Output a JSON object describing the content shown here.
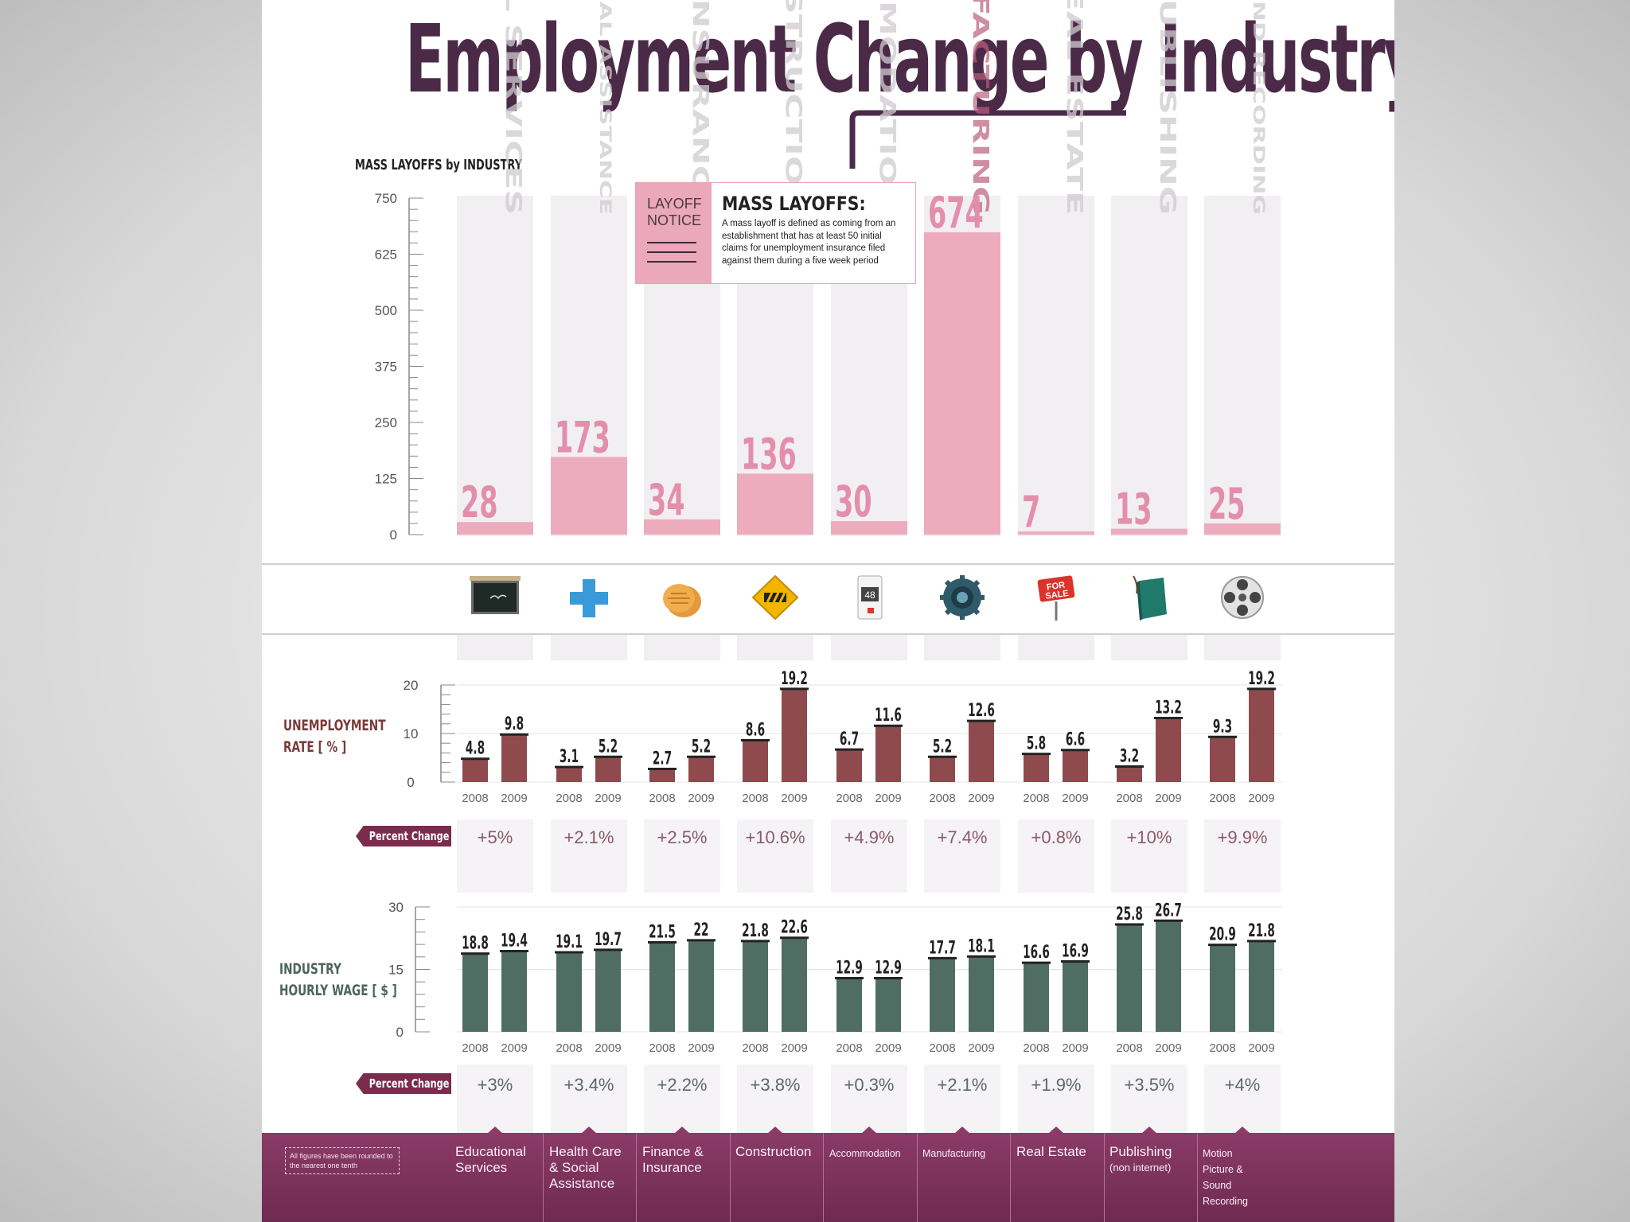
{
  "title": "Employment Change by Industry",
  "colors": {
    "brand": "#4b2a48",
    "layoff_bar": "#eba8bb",
    "column_bg": "#f1eff1",
    "unemployment_bar": "#8f4a4d",
    "wage_bar": "#4f6d63",
    "footer": "#7b2c58",
    "tag": "#7b2c4c"
  },
  "notice": {
    "tag": "LAYOFF NOTICE",
    "title": "MASS LAYOFFS:",
    "text": "A mass layoff is defined as coming from an establishment that has at least 50 initial claims for unemployment insurance filed against them during a five week period"
  },
  "labels": {
    "layoffs_section": "MASS LAYOFFS by INDUSTRY",
    "unemployment_line1": "UNEMPLOYMENT",
    "unemployment_line2": "RATE [ % ]",
    "wage_line1": "INDUSTRY",
    "wage_line2": "HOURLY WAGE [ $ ]",
    "percent_change": "Percent Change",
    "footnote": "All figures have been rounded to the nearest one tenth"
  },
  "industries": [
    {
      "name": "Educational Services",
      "sub": "",
      "icon": "chalkboard-icon"
    },
    {
      "name": "Health Care & Social Assistance",
      "sub": "",
      "icon": "medical-cross-icon"
    },
    {
      "name": "Finance & Insurance",
      "sub": "",
      "icon": "coins-icon"
    },
    {
      "name": "Construction",
      "sub": "",
      "icon": "construction-sign-icon"
    },
    {
      "name": "Accommodation",
      "sub": "",
      "icon": "door-tag-icon"
    },
    {
      "name": "Manufacturing",
      "sub": "",
      "icon": "gear-icon"
    },
    {
      "name": "Real Estate",
      "sub": "",
      "icon": "for-sale-sign-icon"
    },
    {
      "name": "Publishing",
      "sub": "(non internet)",
      "icon": "book-icon"
    },
    {
      "name": "Motion Picture & Sound Recording",
      "sub": "",
      "icon": "film-reel-icon"
    }
  ],
  "chart_data": [
    {
      "type": "bar",
      "title": "MASS LAYOFFS by INDUSTRY",
      "categories": [
        "EDUCATIONAL SERVICES",
        "HEALTH CARE & SOCIAL ASSISTANCE",
        "FINANCE & INSURANCE",
        "CONSTRUCTION",
        "ACCOMMODATION",
        "MANUFACTURING",
        "REAL ESTATE",
        "PUBLISHING",
        "MOTION PICTURE & SOUND RECORDING"
      ],
      "values": [
        28,
        173,
        34,
        136,
        30,
        674,
        7,
        13,
        25
      ],
      "ylim": [
        0,
        750
      ],
      "yticks": [
        0,
        125,
        250,
        375,
        500,
        625,
        750
      ]
    },
    {
      "type": "bar",
      "title": "UNEMPLOYMENT RATE [ % ]",
      "categories": [
        "Educational Services",
        "Health Care & Social Assistance",
        "Finance & Insurance",
        "Construction",
        "Accommodation",
        "Manufacturing",
        "Real Estate",
        "Publishing",
        "Motion Picture & Sound Recording"
      ],
      "series": [
        {
          "name": "2008",
          "values": [
            4.8,
            3.1,
            2.7,
            8.6,
            6.7,
            5.2,
            5.8,
            3.2,
            9.3
          ]
        },
        {
          "name": "2009",
          "values": [
            9.8,
            5.2,
            5.2,
            19.2,
            11.6,
            12.6,
            6.6,
            13.2,
            19.2
          ]
        }
      ],
      "percent_change": [
        "+5%",
        "+2.1%",
        "+2.5%",
        "+10.6%",
        "+4.9%",
        "+7.4%",
        "+0.8%",
        "+10%",
        "+9.9%"
      ],
      "ylim": [
        0,
        20
      ],
      "yticks": [
        0,
        10,
        20
      ]
    },
    {
      "type": "bar",
      "title": "INDUSTRY HOURLY WAGE [ $ ]",
      "categories": [
        "Educational Services",
        "Health Care & Social Assistance",
        "Finance & Insurance",
        "Construction",
        "Accommodation",
        "Manufacturing",
        "Real Estate",
        "Publishing",
        "Motion Picture & Sound Recording"
      ],
      "series": [
        {
          "name": "2008",
          "values": [
            18.8,
            19.1,
            21.5,
            21.8,
            12.9,
            17.7,
            16.6,
            25.8,
            20.9
          ]
        },
        {
          "name": "2009",
          "values": [
            19.4,
            19.7,
            22,
            22.6,
            12.9,
            18.1,
            16.9,
            26.7,
            21.8
          ]
        }
      ],
      "percent_change": [
        "+3%",
        "+3.4%",
        "+2.2%",
        "+3.8%",
        "+0.3%",
        "+2.1%",
        "+1.9%",
        "+3.5%",
        "+4%"
      ],
      "ylim": [
        0,
        30
      ],
      "yticks": [
        0,
        15,
        30
      ]
    }
  ]
}
